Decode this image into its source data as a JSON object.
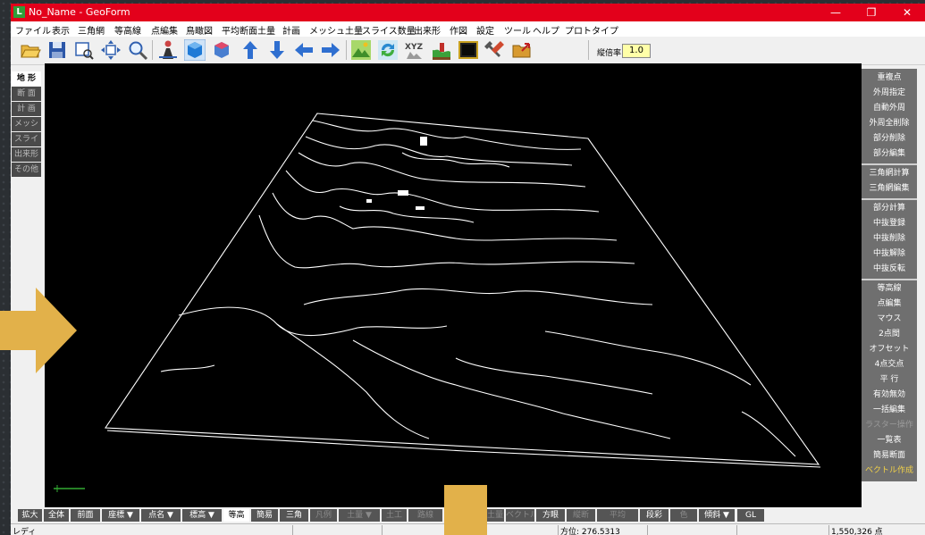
{
  "window": {
    "title": "No_Name - GeoForm",
    "app_icon_letter": "L",
    "minimize_glyph": "—",
    "maximize_glyph": "❐",
    "close_glyph": "✕"
  },
  "menu": [
    "ファイル",
    "表示",
    "三角網",
    "等高線",
    "点編集",
    "鳥瞰図",
    "平均断面土量",
    "計画",
    "メッシュ土量",
    "スライス数量",
    "出来形",
    "作図",
    "設定",
    "ツール",
    "ヘルプ",
    "プロトタイプ"
  ],
  "toolbar": {
    "icons": [
      "open-folder-icon",
      "save-icon",
      "zoom-window-icon",
      "pan-icon",
      "zoom-icon",
      "person-icon",
      "blue-cube-icon",
      "red-cube-icon",
      "arrow-up-icon",
      "arrow-down-icon",
      "arrow-left-icon",
      "arrow-right-icon",
      "terrain-icon",
      "refresh-icon",
      "xyz-icon",
      "ground-icon",
      "frame-icon",
      "tools-icon",
      "folder-export-icon"
    ],
    "zoom_label": "縦倍率",
    "zoom_value": "1.0"
  },
  "left_panel": [
    "地 形",
    "断 面",
    "計 画",
    "メッシュ",
    "スライス",
    "出来形",
    "その他"
  ],
  "right_panel": {
    "groups": [
      [
        "重複点",
        "外周指定",
        "自動外周",
        "外周全削除",
        "部分削除",
        "部分編集"
      ],
      [
        "三角網計算",
        "三角網編集"
      ],
      [
        "部分計算",
        "中抜登録",
        "中抜削除",
        "中抜解除",
        "中抜反転"
      ],
      [
        "等高線",
        "点編集",
        "マウス",
        "2点間",
        "オフセット",
        "4点交点",
        "平 行",
        "有効無効",
        "一括編集",
        "ラスター操作",
        "一覧表",
        "簡易断面",
        "ベクトル作成"
      ]
    ]
  },
  "bottom_bar": [
    "拡大",
    "全体",
    "前面",
    "座標 ▼",
    "点名 ▼",
    "標高 ▼",
    "等高",
    "簡易",
    "三角",
    "凡例",
    "土量 ▼",
    "土工",
    "路線",
    "工事",
    "土量",
    "ベクトル",
    "方眼",
    "縦断",
    "平均",
    "段彩",
    "色",
    "傾斜 ▼",
    "GL"
  ],
  "status": {
    "left": "レディ",
    "azimuth": "方位: 276.5313",
    "point_count": "1,550,326 点"
  },
  "colors": {
    "title_bar": "#e3001b",
    "canvas": "#000000",
    "accent_arrow": "#e2b14a",
    "zoom_input": "#ffffa8",
    "vector_create_text": "#f0d048"
  }
}
